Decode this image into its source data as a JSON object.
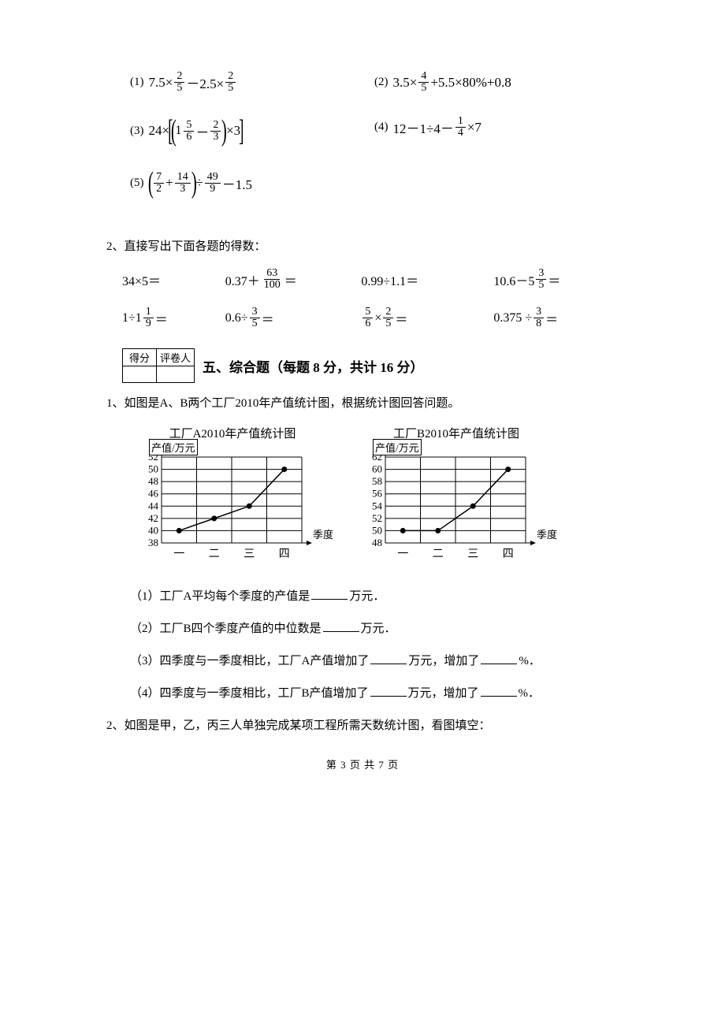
{
  "calc": {
    "q1": {
      "num": "(1)",
      "a": "7.5×",
      "f1n": "2",
      "f1d": "5",
      "b": "－2.5×",
      "f2n": "2",
      "f2d": "5"
    },
    "q2": {
      "num": "(2)",
      "a": "3.5×",
      "f1n": "4",
      "f1d": "5",
      "b": "+5.5×80%+0.8"
    },
    "q3": {
      "num": "(3)",
      "a": "24×",
      "mw": "1",
      "mfn": "5",
      "mfd": "6",
      "c": "－",
      "f2n": "2",
      "f2d": "3",
      "d": "×3"
    },
    "q4": {
      "num": "(4)",
      "a": "12－1÷4－",
      "f1n": "1",
      "f1d": "4",
      "b": "×7"
    },
    "q5": {
      "num": "(5)",
      "f1n": "7",
      "f1d": "2",
      "a": "+",
      "f2n": "14",
      "f2d": "3",
      "b": "÷",
      "f3n": "49",
      "f3d": "9",
      "c": "－1.5"
    }
  },
  "direct": {
    "title": "2、直接写出下面各题的得数：",
    "r1": {
      "c1": "34×5＝",
      "c2a": "0.37＋",
      "c2fn": "63",
      "c2fd": "100",
      "c2b": "＝",
      "c3": "0.99÷1.1＝",
      "c4a": "10.6－5",
      "c4fn": "3",
      "c4fd": "5",
      "c4b": "＝"
    },
    "r2": {
      "c1a": "1÷1",
      "c1fn": "1",
      "c1fd": "9",
      "c1b": " ＝",
      "c2a": "0.6÷",
      "c2fn": "3",
      "c2fd": "5",
      "c2b": " ＝",
      "c3fn1": "5",
      "c3fd1": "6",
      "c3m": " × ",
      "c3fn2": "2",
      "c3fd2": "5",
      "c3b": " ＝",
      "c4a": "0.375 ÷ ",
      "c4fn": "3",
      "c4fd": "8",
      "c4b": " ＝"
    }
  },
  "scorebox": {
    "h1": "得分",
    "h2": "评卷人"
  },
  "section5": {
    "title": "五、综合题（每题 8 分，共计 16 分）",
    "q1": "1、如图是A、B两个工厂2010年产值统计图，根据统计图回答问题。",
    "chartA": {
      "title": "工厂A2010年产值统计图",
      "ylabel": "产值/万元",
      "xlabel": "季度",
      "yticks": [
        "52",
        "50",
        "48",
        "46",
        "44",
        "42",
        "40",
        "38"
      ],
      "ymin": 38,
      "ymax": 52,
      "xticks": [
        "一",
        "二",
        "三",
        "四"
      ],
      "values": [
        40,
        42,
        44,
        50
      ],
      "line_color": "#000000",
      "grid_color": "#000000",
      "bg": "#ffffff",
      "fontsize": 13
    },
    "chartB": {
      "title": "工厂B2010年产值统计图",
      "ylabel": "产值/万元",
      "xlabel": "季度",
      "yticks": [
        "62",
        "60",
        "58",
        "56",
        "54",
        "52",
        "50",
        "48"
      ],
      "ymin": 48,
      "ymax": 62,
      "xticks": [
        "一",
        "二",
        "三",
        "四"
      ],
      "values": [
        50,
        50,
        54,
        60
      ],
      "line_color": "#000000",
      "grid_color": "#000000",
      "bg": "#ffffff",
      "fontsize": 13
    },
    "sub1": "（1）工厂A平均每个季度的产值是",
    "sub1_unit": "万元．",
    "sub2": "（2）工厂B四个季度产值的中位数是",
    "sub2_unit": "万元．",
    "sub3a": "（3）四季度与一季度相比，工厂A产值增加了",
    "sub3b": "万元，增加了",
    "sub3c": "%．",
    "sub4a": "（4）四季度与一季度相比，工厂B产值增加了",
    "sub4b": "万元，增加了",
    "sub4c": "%．",
    "q2": "2、如图是甲，乙，丙三人单独完成某项工程所需天数统计图，看图填空："
  },
  "footer": "第 3 页 共 7 页"
}
